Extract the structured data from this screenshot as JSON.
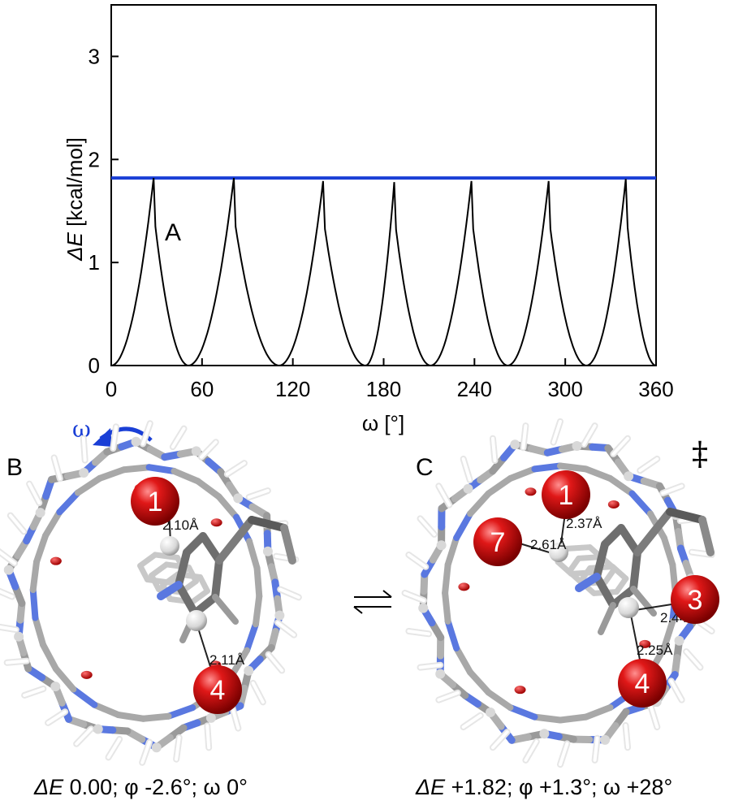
{
  "chart_data": {
    "type": "line",
    "xlabel": "ω [°]",
    "ylabel_symbol": "ΔE",
    "ylabel_unit": "[kcal/mol]",
    "xlim": [
      0,
      360
    ],
    "ylim": [
      0,
      3.5
    ],
    "xticks": [
      0,
      60,
      120,
      180,
      240,
      300,
      360
    ],
    "yticks": [
      0,
      1,
      2,
      3
    ],
    "grid": false,
    "annotation": "A",
    "series": [
      {
        "color": "#000000",
        "style": "sawtooth-energy-profile",
        "minima_omega": [
          0,
          51,
          111,
          168,
          211,
          262,
          314
        ],
        "maxima": [
          {
            "omega": 28,
            "dE": 1.82
          },
          {
            "omega": 81,
            "dE": 1.82
          },
          {
            "omega": 140,
            "dE": 1.79
          },
          {
            "omega": 187,
            "dE": 1.78
          },
          {
            "omega": 238,
            "dE": 1.79
          },
          {
            "omega": 289,
            "dE": 1.79
          },
          {
            "omega": 340,
            "dE": 1.81
          }
        ],
        "end": {
          "omega": 360,
          "dE": 0
        }
      },
      {
        "color": "#1a3fd6",
        "style": "horizontal-line",
        "y": 1.82
      }
    ]
  },
  "panel_b": {
    "letter": "B",
    "rotation_symbol": "ω",
    "accent_color": "#1a3fd6",
    "atom_labels": [
      "1",
      "4"
    ],
    "distances": [
      "2.10Å",
      "2.11Å"
    ],
    "caption_prefix": "ΔE",
    "caption_rest": " 0.00; φ -2.6°; ω 0°"
  },
  "panel_c": {
    "letter": "C",
    "ts_symbol": "‡",
    "atom_labels": [
      "1",
      "7",
      "3",
      "4"
    ],
    "distances": [
      "2.37Å",
      "2.61Å",
      "2.44Å",
      "2.25Å"
    ],
    "caption_prefix": "ΔE",
    "caption_rest": " +1.82; φ +1.3°; ω +28°"
  },
  "equilibrium_arrows": "⇌",
  "colors": {
    "oxygen": "#d40000",
    "nitrogen": "#5a78e0",
    "carbon": "#8a8a8a",
    "hydrogen": "#f2f2f2"
  }
}
